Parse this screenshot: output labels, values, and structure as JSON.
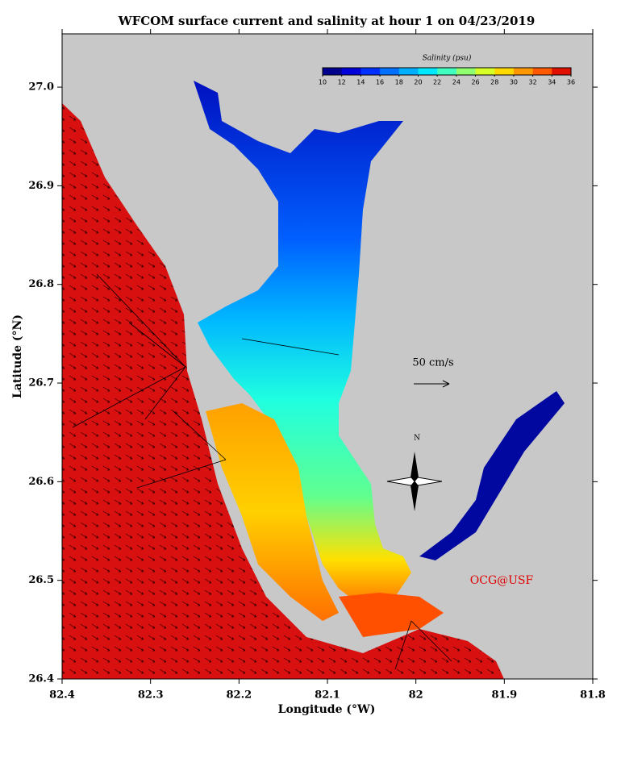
{
  "title": "WFCOM surface current and salinity at hour 1 on 04/23/2019",
  "map": {
    "xlabel": "Longitude (°W)",
    "ylabel": "Latitude (°N)",
    "xlim": [
      82.4,
      81.8
    ],
    "xticks": [
      82.4,
      82.3,
      82.2,
      82.1,
      82.0,
      81.9,
      81.8
    ],
    "ylim": [
      26.4,
      27.054
    ],
    "yticks": [
      {
        "value": 26.4,
        "label": "26.4"
      },
      {
        "value": 26.5,
        "label": "26.5"
      },
      {
        "value": 26.6,
        "label": "26.6"
      },
      {
        "value": 26.7,
        "label": "26.7"
      },
      {
        "value": 26.8,
        "label": "26.8"
      },
      {
        "value": 26.9,
        "label": "26.9"
      },
      {
        "value": 27.0,
        "label": "27.0"
      }
    ]
  },
  "colorbar": {
    "title": "Salinity (psu)",
    "range": [
      10,
      36
    ],
    "ticks": [
      10,
      12,
      14,
      16,
      18,
      20,
      22,
      24,
      26,
      28,
      30,
      32,
      34,
      36
    ],
    "colors": [
      "#00008f",
      "#0000d8",
      "#0030ff",
      "#0070ff",
      "#00b0ff",
      "#00e8ff",
      "#40ffc0",
      "#90ff70",
      "#d8ff28",
      "#ffd800",
      "#ff9800",
      "#ff5800",
      "#e01000"
    ]
  },
  "scale_label": "50 cm/s",
  "north_label": "N",
  "credit": "OCG@USF"
}
